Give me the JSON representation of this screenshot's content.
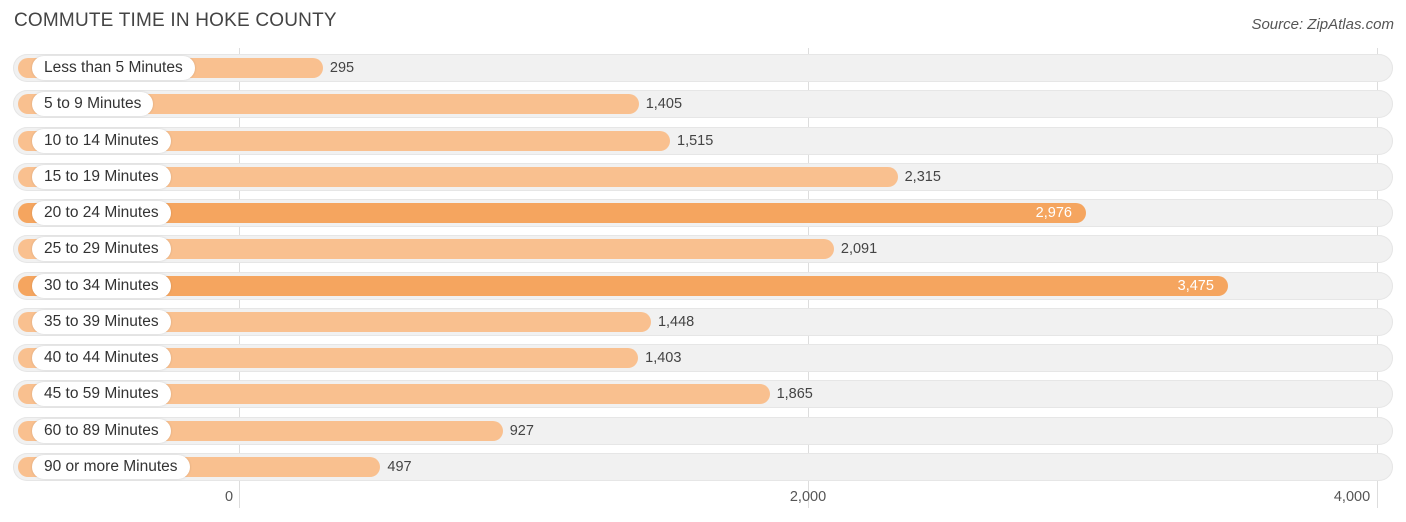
{
  "title": "COMMUTE TIME IN HOKE COUNTY",
  "source": "Source: ZipAtlas.com",
  "colors": {
    "bar_light": "#f9c08f",
    "bar_strong": "#f5a55f",
    "track": "#f1f1f1"
  },
  "chart_data": {
    "type": "bar",
    "orientation": "horizontal",
    "title": "COMMUTE TIME IN HOKE COUNTY",
    "xlabel": "",
    "ylabel": "",
    "xlim": [
      0,
      4000
    ],
    "ticks": [
      0,
      2000,
      4000
    ],
    "tick_labels": [
      "0",
      "2,000",
      "4,000"
    ],
    "grid": true,
    "categories": [
      "Less than 5 Minutes",
      "5 to 9 Minutes",
      "10 to 14 Minutes",
      "15 to 19 Minutes",
      "20 to 24 Minutes",
      "25 to 29 Minutes",
      "30 to 34 Minutes",
      "35 to 39 Minutes",
      "40 to 44 Minutes",
      "45 to 59 Minutes",
      "60 to 89 Minutes",
      "90 or more Minutes"
    ],
    "values": [
      295,
      1405,
      1515,
      2315,
      2976,
      2091,
      3475,
      1448,
      1403,
      1865,
      927,
      497
    ],
    "value_labels": [
      "295",
      "1,405",
      "1,515",
      "2,315",
      "2,976",
      "2,091",
      "3,475",
      "1,448",
      "1,403",
      "1,865",
      "927",
      "497"
    ]
  }
}
